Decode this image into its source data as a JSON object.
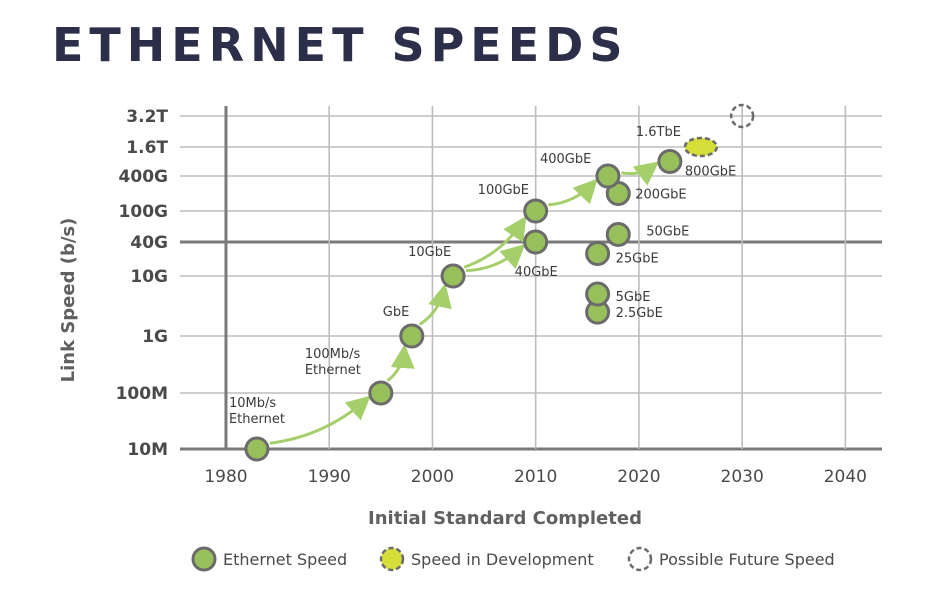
{
  "title": "ETHERNET SPEEDS",
  "colors": {
    "point_fill": "#97c05c",
    "point_stroke": "#6b6b6b",
    "dev_fill": "#d6df3a",
    "arrow": "#a5cf6a",
    "grid_major": "#7a7a7a",
    "grid_minor": "#bdbdbd",
    "title": "#2b2f4a"
  },
  "chart_data": {
    "type": "scatter",
    "title": "ETHERNET SPEEDS",
    "xlabel": "Initial Standard Completed",
    "ylabel": "Link Speed (b/s)",
    "xlim": [
      1977,
      2045
    ],
    "x_ticks": [
      1980,
      1990,
      2000,
      2010,
      2020,
      2030,
      2040
    ],
    "y_categories": [
      "10M",
      "100M",
      "1G",
      "10G",
      "40G",
      "100G",
      "400G",
      "1.6T",
      "3.2T"
    ],
    "y_index": {
      "10M": 0,
      "100M": 1,
      "1G": 2,
      "10G": 3,
      "40G": 4,
      "100G": 5,
      "400G": 6,
      "1.6T": 7,
      "3.2T": 8
    },
    "points": [
      {
        "name": "10Mb/s Ethernet",
        "label_lines": [
          "10Mb/s",
          "Ethernet"
        ],
        "x": 1983,
        "speed": "10M",
        "status": "ethernet"
      },
      {
        "name": "100Mb/s Ethernet",
        "label_lines": [
          "100Mb/s",
          "Ethernet"
        ],
        "x": 1995,
        "speed": "100M",
        "status": "ethernet"
      },
      {
        "name": "GbE",
        "label_lines": [
          "GbE"
        ],
        "x": 1998,
        "speed": "1G",
        "status": "ethernet"
      },
      {
        "name": "10GbE",
        "label_lines": [
          "10GbE"
        ],
        "x": 2002,
        "speed": "10G",
        "status": "ethernet"
      },
      {
        "name": "40GbE",
        "label_lines": [
          "40GbE"
        ],
        "x": 2010,
        "speed": "40G",
        "status": "ethernet"
      },
      {
        "name": "100GbE",
        "label_lines": [
          "100GbE"
        ],
        "x": 2010,
        "speed": "100G",
        "status": "ethernet"
      },
      {
        "name": "2.5GbE",
        "label_lines": [
          "2.5GbE"
        ],
        "x": 2016,
        "speed_value": 2.5,
        "status": "ethernet"
      },
      {
        "name": "5GbE",
        "label_lines": [
          "5GbE"
        ],
        "x": 2016,
        "speed_value": 5,
        "status": "ethernet"
      },
      {
        "name": "25GbE",
        "label_lines": [
          "25GbE"
        ],
        "x": 2016,
        "speed_value": 25,
        "status": "ethernet"
      },
      {
        "name": "50GbE",
        "label_lines": [
          "50GbE"
        ],
        "x": 2018,
        "speed_value": 50,
        "status": "ethernet"
      },
      {
        "name": "200GbE",
        "label_lines": [
          "200GbE"
        ],
        "x": 2018,
        "speed_value": 200,
        "status": "ethernet"
      },
      {
        "name": "400GbE",
        "label_lines": [
          "400GbE"
        ],
        "x": 2017,
        "speed": "400G",
        "status": "ethernet"
      },
      {
        "name": "800GbE",
        "label_lines": [
          "800GbE"
        ],
        "x": 2023,
        "speed_value": 800,
        "status": "ethernet"
      },
      {
        "name": "1.6TbE",
        "label_lines": [
          "1.6TbE"
        ],
        "x": 2026,
        "speed": "1.6T",
        "status": "development"
      },
      {
        "name": "Possible Future Speed",
        "label_lines": [],
        "x": 2030,
        "speed": "3.2T",
        "status": "future"
      }
    ],
    "arrows": [
      {
        "from": "10Mb/s Ethernet",
        "to": "100Mb/s Ethernet"
      },
      {
        "from": "100Mb/s Ethernet",
        "to": "GbE"
      },
      {
        "from": "GbE",
        "to": "10GbE"
      },
      {
        "from": "10GbE",
        "to": "100GbE"
      },
      {
        "from": "10GbE",
        "to": "40GbE"
      },
      {
        "from": "100GbE",
        "to": "400GbE"
      },
      {
        "from": "400GbE",
        "to": "800GbE"
      }
    ],
    "legend": [
      {
        "label": "Ethernet Speed",
        "status": "ethernet"
      },
      {
        "label": "Speed in Development",
        "status": "development"
      },
      {
        "label": "Possible Future Speed",
        "status": "future"
      }
    ],
    "legend_position": "bottom"
  }
}
